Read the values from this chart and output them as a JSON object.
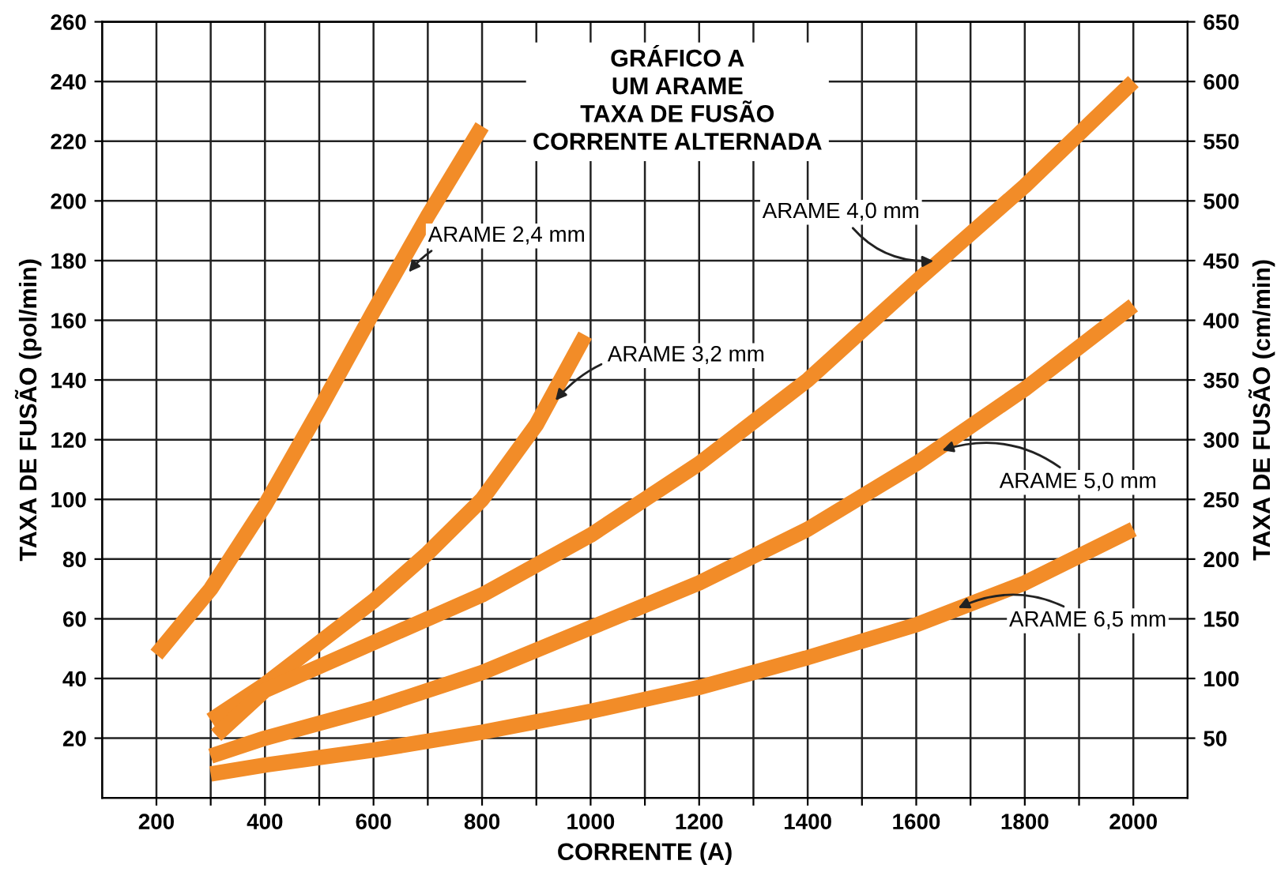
{
  "chart_data": {
    "type": "line",
    "title": "GRÁFICO A\nUM ARAME\nTAXA DE FUSÃO\nCORRENTE ALTERNADA",
    "xlabel": "CORRENTE (A)",
    "ylabel": "TAXA DE FUSÃO (pol/min)",
    "y2label": "TAXA DE FUSÃO (cm/min)",
    "series": [
      {
        "color": "#f28c28",
        "x": [
          200,
          300,
          400,
          500,
          600,
          700,
          800
        ],
        "values": [
          48,
          70,
          98,
          130,
          163,
          195,
          225
        ]
      },
      {
        "color": "#f28c28",
        "x": [
          300,
          400,
          500,
          600,
          700,
          800,
          900,
          990
        ],
        "values": [
          26,
          38,
          52,
          66,
          82,
          100,
          125,
          155
        ]
      },
      {
        "color": "#f28c28",
        "x": [
          310,
          400,
          600,
          800,
          1000,
          1200,
          1400,
          1600,
          1800,
          2000
        ],
        "values": [
          21,
          36,
          52,
          68,
          88,
          112,
          140,
          173,
          205,
          240
        ]
      },
      {
        "color": "#f28c28",
        "x": [
          300,
          400,
          600,
          800,
          1000,
          1200,
          1400,
          1600,
          1800,
          2000
        ],
        "values": [
          14,
          20,
          30,
          42,
          57,
          72,
          90,
          112,
          137,
          165
        ]
      },
      {
        "color": "#f28c28",
        "x": [
          300,
          400,
          600,
          800,
          1000,
          1200,
          1400,
          1600,
          1800,
          2000
        ],
        "values": [
          8,
          11,
          16,
          22,
          29,
          37,
          47,
          58,
          72,
          90
        ]
      }
    ],
    "annotations": [
      {
        "text": "ARAME 2,4 mm",
        "x": 660,
        "y": 175
      },
      {
        "text": "ARAME 3,2 mm",
        "x": 930,
        "y": 132
      },
      {
        "text": "ARAME 4,0 mm",
        "x": 1640,
        "y": 180
      },
      {
        "text": "ARAME 5,0 mm",
        "x": 1640,
        "y": 116
      },
      {
        "text": "ARAME 6,5 mm",
        "x": 1670,
        "y": 63
      }
    ],
    "xlim": [
      100,
      2100
    ],
    "ylim": [
      0,
      260
    ],
    "y2lim": [
      0,
      650
    ],
    "xticks": [
      200,
      {
        "value": 300,
        "label": null
      },
      400,
      {
        "value": 500,
        "label": null
      },
      600,
      {
        "value": 700,
        "label": null
      },
      800,
      {
        "value": 900,
        "label": null
      },
      1000,
      {
        "value": 1100,
        "label": null
      },
      1200,
      {
        "value": 1300,
        "label": null
      },
      1400,
      {
        "value": 1500,
        "label": null
      },
      1600,
      {
        "value": 1700,
        "label": null
      },
      1800,
      {
        "value": 1900,
        "label": null
      },
      2000
    ],
    "yticks": [
      20,
      40,
      60,
      80,
      100,
      120,
      140,
      160,
      180,
      200,
      220,
      240,
      260
    ],
    "y2ticks": [
      50,
      100,
      150,
      200,
      250,
      300,
      350,
      400,
      450,
      500,
      550,
      600,
      650
    ],
    "grid": true,
    "marker": "none",
    "line_style": "solid"
  }
}
